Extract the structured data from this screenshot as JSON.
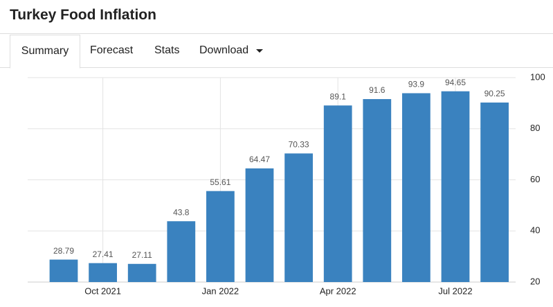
{
  "header": {
    "title": "Turkey Food Inflation"
  },
  "tabs": [
    "Summary",
    "Forecast",
    "Stats",
    "Download"
  ],
  "chart_data": {
    "type": "bar",
    "categories": [
      null,
      "Oct 2021",
      null,
      null,
      "Jan 2022",
      null,
      null,
      "Apr 2022",
      null,
      null,
      "Jul 2022",
      null
    ],
    "values": [
      28.79,
      27.41,
      27.11,
      43.8,
      55.61,
      64.47,
      70.33,
      89.1,
      91.6,
      93.9,
      94.65,
      90.25
    ],
    "color": "#3a82bf",
    "ylim": [
      20,
      100
    ],
    "yticks": [
      20,
      40,
      60,
      80,
      100
    ],
    "grid": true
  }
}
